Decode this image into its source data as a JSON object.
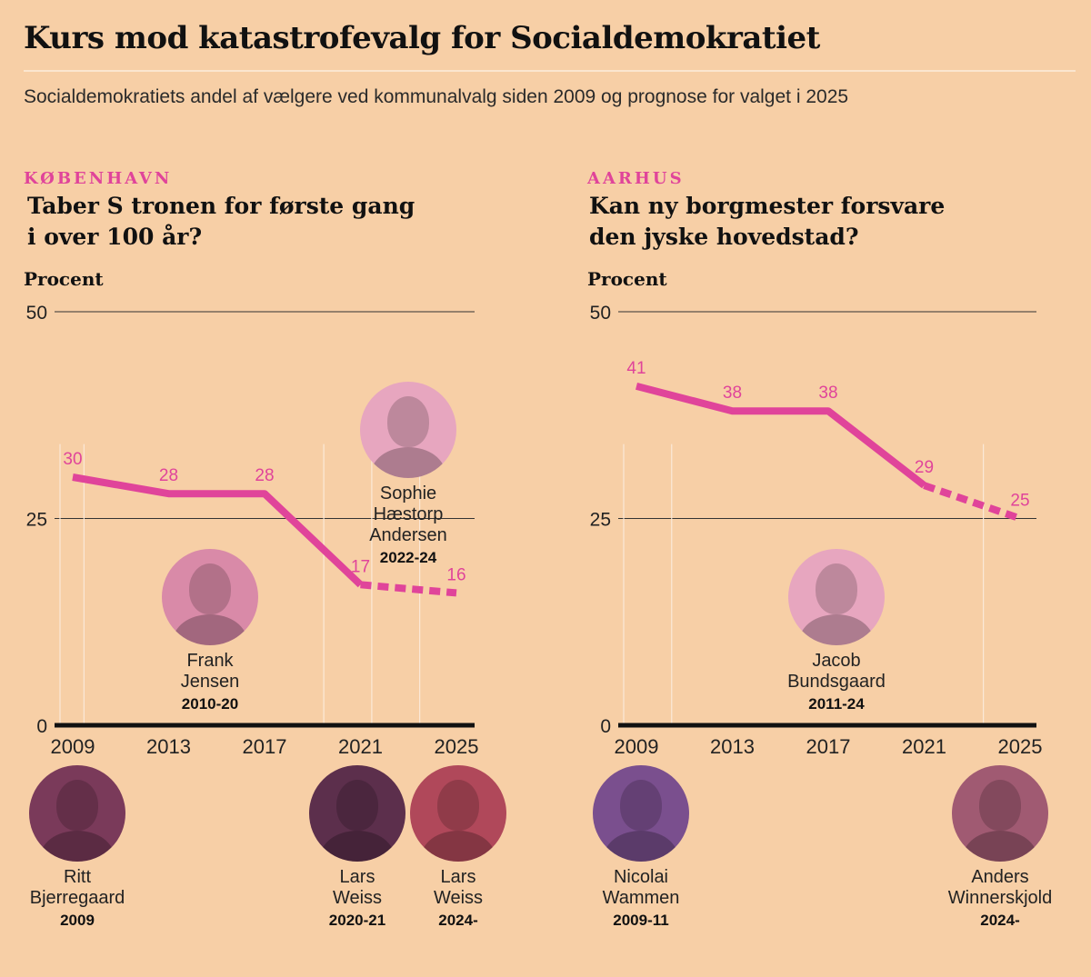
{
  "header": {
    "title": "Kurs mod katastrofevalg for Socialdemokratiet",
    "subtitle": "Socialdemokratiets andel af vælgere ved kommunalvalg siden 2009 og prognose for valget i 2025"
  },
  "colors": {
    "line": "#e0449a",
    "label": "#e0449a",
    "axis": "#111111",
    "grid": "#333333",
    "background": "#f7cfa6"
  },
  "panels": [
    {
      "city": "KØBENHAVN",
      "title_lines": [
        "Taber S tronen for første gang",
        "i over 100 år?"
      ],
      "unit": "Procent",
      "mayors": [
        {
          "name_lines": [
            "Ritt",
            "Bjerregaard"
          ],
          "years": "2009",
          "photo_color": "#7a3a5a",
          "icon": "portrait-icon"
        },
        {
          "name_lines": [
            "Frank",
            "Jensen"
          ],
          "years": "2010-20",
          "photo_color": "#d98aa8",
          "icon": "portrait-icon"
        },
        {
          "name_lines": [
            "Sophie",
            "Hæstorp",
            "Andersen"
          ],
          "years": "2022-24",
          "photo_color": "#e7a6bf",
          "icon": "portrait-icon"
        },
        {
          "name_lines": [
            "Lars",
            "Weiss"
          ],
          "years": "2020-21",
          "photo_color": "#5c2f4c",
          "icon": "portrait-icon"
        },
        {
          "name_lines": [
            "Lars",
            "Weiss"
          ],
          "years": "2024-",
          "photo_color": "#b0485a",
          "icon": "portrait-icon"
        }
      ]
    },
    {
      "city": "AARHUS",
      "title_lines": [
        "Kan ny borgmester forsvare",
        "den jyske hovedstad?"
      ],
      "unit": "Procent",
      "mayors": [
        {
          "name_lines": [
            "Nicolai",
            "Wammen"
          ],
          "years": "2009-11",
          "photo_color": "#7a4f8e",
          "icon": "portrait-icon"
        },
        {
          "name_lines": [
            "Jacob",
            "Bundsgaard"
          ],
          "years": "2011-24",
          "photo_color": "#e7a6bf",
          "icon": "portrait-icon"
        },
        {
          "name_lines": [
            "Anders",
            "Winnerskjold"
          ],
          "years": "2024-",
          "photo_color": "#a05a72",
          "icon": "portrait-icon"
        }
      ]
    }
  ],
  "chart_data": [
    {
      "type": "line",
      "title": "KØBENHAVN",
      "ylabel": "Procent",
      "ylim": [
        0,
        50
      ],
      "yticks": [
        0,
        25,
        50
      ],
      "xlim": [
        2008.5,
        2025.5
      ],
      "xticks": [
        2009,
        2013,
        2017,
        2021,
        2025
      ],
      "grid": "horizontal at 25 and 50",
      "series": [
        {
          "style": "solid",
          "x": [
            2009,
            2013,
            2017,
            2021
          ],
          "values": [
            30,
            28,
            28,
            17
          ]
        },
        {
          "style": "dashed",
          "x": [
            2021,
            2025
          ],
          "values": [
            17,
            16
          ]
        }
      ],
      "data_labels": [
        {
          "x": 2009,
          "y": 30,
          "text": "30"
        },
        {
          "x": 2013,
          "y": 28,
          "text": "28"
        },
        {
          "x": 2017,
          "y": 28,
          "text": "28"
        },
        {
          "x": 2021,
          "y": 17,
          "text": "17"
        },
        {
          "x": 2025,
          "y": 16,
          "text": "16"
        }
      ],
      "mayor_markers": [
        2009,
        2010,
        2020,
        2022,
        2024
      ]
    },
    {
      "type": "line",
      "title": "AARHUS",
      "ylabel": "Procent",
      "ylim": [
        0,
        50
      ],
      "yticks": [
        0,
        25,
        50
      ],
      "xlim": [
        2008.5,
        2025.5
      ],
      "xticks": [
        2009,
        2013,
        2017,
        2021,
        2025
      ],
      "grid": "horizontal at 25 and 50",
      "series": [
        {
          "style": "solid",
          "x": [
            2009,
            2013,
            2017,
            2021
          ],
          "values": [
            41,
            38,
            38,
            29
          ]
        },
        {
          "style": "dashed",
          "x": [
            2021,
            2025
          ],
          "values": [
            29,
            25
          ]
        }
      ],
      "data_labels": [
        {
          "x": 2009,
          "y": 41,
          "text": "41"
        },
        {
          "x": 2013,
          "y": 38,
          "text": "38"
        },
        {
          "x": 2017,
          "y": 38,
          "text": "38"
        },
        {
          "x": 2021,
          "y": 29,
          "text": "29"
        },
        {
          "x": 2025,
          "y": 25,
          "text": "25"
        }
      ],
      "mayor_markers": [
        2009,
        2011,
        2024
      ]
    }
  ]
}
